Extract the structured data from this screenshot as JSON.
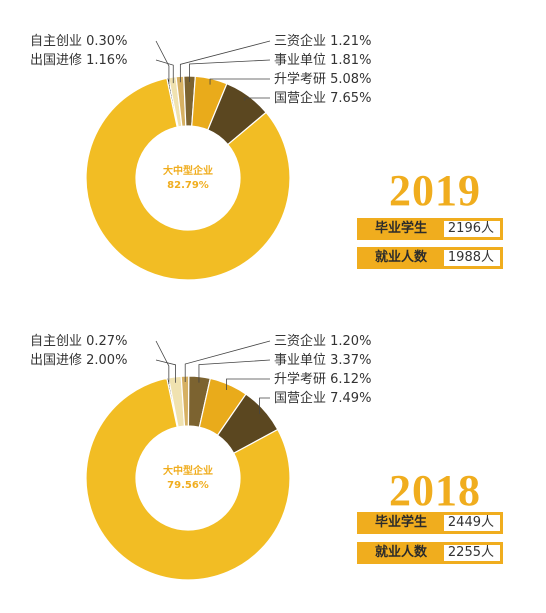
{
  "chart_data": [
    {
      "type": "pie",
      "year": "2019",
      "categories": [
        "大中型企业",
        "自主创业",
        "出国进修",
        "三资企业",
        "事业单位",
        "升学考研",
        "国营企业"
      ],
      "values": [
        82.79,
        0.3,
        1.16,
        1.21,
        1.81,
        5.08,
        7.65
      ],
      "labels": [
        "大中型企业\n82.79%",
        "自主创业 0.30%",
        "出国进修 1.16%",
        "三资企业 1.21%",
        "事业单位 1.81%",
        "升学考研 5.08%",
        "国营企业 7.65%"
      ],
      "stats": [
        {
          "label": "毕业学生",
          "value": "2196人"
        },
        {
          "label": "就业人数",
          "value": "1988人"
        }
      ]
    },
    {
      "type": "pie",
      "year": "2018",
      "categories": [
        "大中型企业",
        "自主创业",
        "出国进修",
        "三资企业",
        "事业单位",
        "升学考研",
        "国营企业"
      ],
      "values": [
        79.56,
        0.27,
        2.0,
        1.2,
        3.37,
        6.12,
        7.49
      ],
      "labels": [
        "大中型企业\n79.56%",
        "自主创业 0.27%",
        "出国进修 2.00%",
        "三资企业 1.20%",
        "事业单位 3.37%",
        "升学考研 6.12%",
        "国营企业 7.49%"
      ],
      "stats": [
        {
          "label": "毕业学生",
          "value": "2449人"
        },
        {
          "label": "就业人数",
          "value": "2255人"
        }
      ]
    }
  ],
  "colors": {
    "大中型企业": "#f2bd24",
    "自主创业": "#1e1e1e",
    "出国进修": "#f0e2b0",
    "三资企业": "#d6b062",
    "事业单位": "#7c6330",
    "升学考研": "#e9ab1b",
    "国营企业": "#5b4720",
    "accent": "#f0ad1e"
  }
}
